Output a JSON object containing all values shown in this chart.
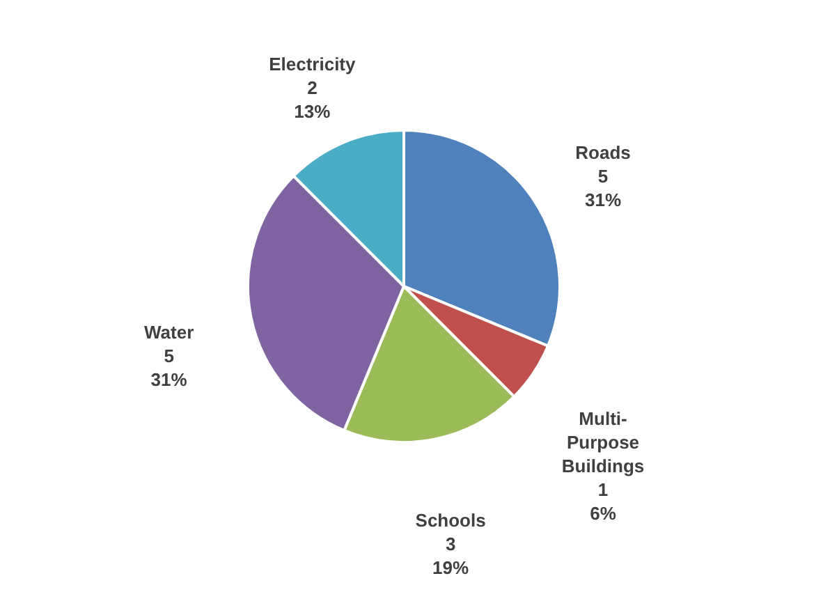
{
  "chart_data": {
    "type": "pie",
    "categories": [
      "Roads",
      "Multi-Purpose Buildings",
      "Schools",
      "Water",
      "Electricity"
    ],
    "values": [
      5,
      1,
      3,
      5,
      2
    ],
    "colors": [
      "#4f81bd",
      "#c0504d",
      "#9bbb59",
      "#8064a2",
      "#4bacc6"
    ],
    "value_labels": [
      "5\n31%",
      "1\n6%",
      "3\n19%",
      "5\n31%",
      "2\n13%"
    ],
    "legend": false
  }
}
